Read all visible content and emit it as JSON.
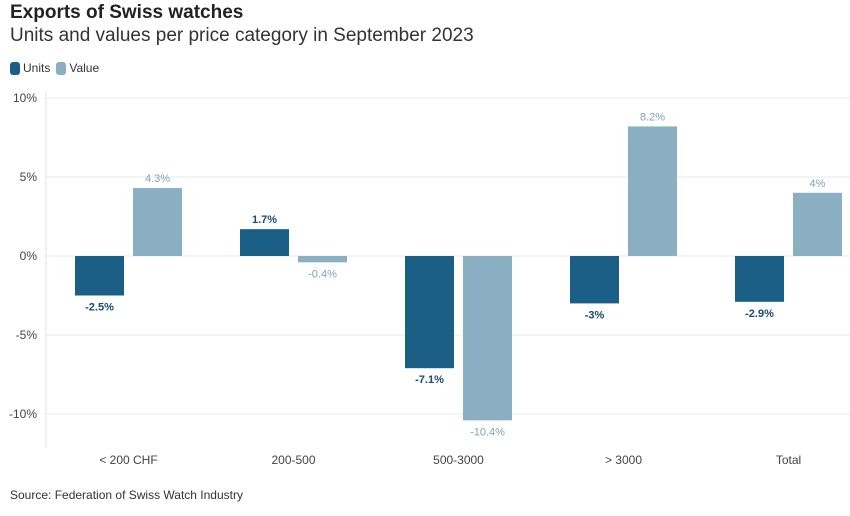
{
  "chart_data": {
    "type": "bar",
    "title": "Exports of Swiss watches",
    "subtitle": "Units and values per price category in September 2023",
    "categories": [
      "< 200 CHF",
      "200-500",
      "500-3000",
      "> 3000",
      "Total"
    ],
    "series": [
      {
        "name": "Units",
        "color": "#1b5f86",
        "label_color": "#1b4a6b",
        "values": [
          -2.5,
          1.7,
          -7.1,
          -3,
          -2.9
        ],
        "labels": [
          "-2.5%",
          "1.7%",
          "-7.1%",
          "-3%",
          "-2.9%"
        ]
      },
      {
        "name": "Value",
        "color": "#8aafc2",
        "label_color": "#7fa3b8",
        "values": [
          4.3,
          -0.4,
          -10.4,
          8.2,
          4
        ],
        "labels": [
          "4.3%",
          "-0.4%",
          "-10.4%",
          "8.2%",
          "4%"
        ]
      }
    ],
    "yticks": [
      10,
      5,
      0,
      -5,
      -10
    ],
    "ytick_labels": [
      "10%",
      "5%",
      "0%",
      "-5%",
      "-10%"
    ],
    "ylim": [
      -12,
      10
    ],
    "xlabel": "",
    "ylabel": "",
    "grid": true,
    "legend_position": "top-left"
  },
  "source": "Source: Federation of Swiss Watch Industry"
}
